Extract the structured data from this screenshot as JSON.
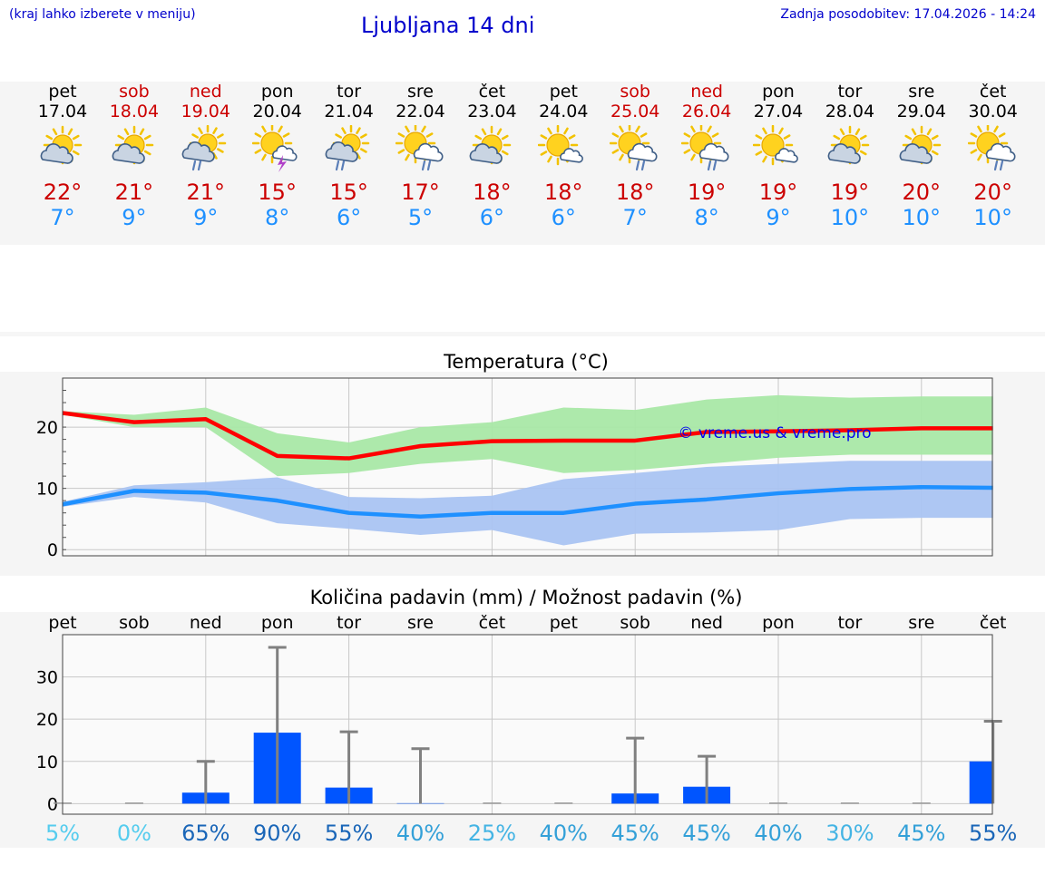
{
  "header": {
    "location_hint": "(kraj lahko izberete v meniju)",
    "title": "Ljubljana 14 dni",
    "updated": "Zadnja posodobitev: 17.04.2026 - 14:24"
  },
  "colors": {
    "link_blue": "#0000cc",
    "max_red": "#cc0000",
    "min_blue": "#1e90ff",
    "max_line": "#ff0000",
    "max_band": "#a9e8a6",
    "min_band": "#aac4f2",
    "bar": "#0055ff",
    "error_bar": "#808080"
  },
  "days": [
    {
      "name": "pet",
      "date": "17.04",
      "weekend": false,
      "icon": "partly-cloudy-icon",
      "max": "22°",
      "min": "7°"
    },
    {
      "name": "sob",
      "date": "18.04",
      "weekend": true,
      "icon": "partly-cloudy-icon",
      "max": "21°",
      "min": "9°"
    },
    {
      "name": "ned",
      "date": "19.04",
      "weekend": true,
      "icon": "cloudy-rain-icon",
      "max": "21°",
      "min": "9°"
    },
    {
      "name": "pon",
      "date": "20.04",
      "weekend": false,
      "icon": "thunderstorm-icon",
      "max": "15°",
      "min": "8°"
    },
    {
      "name": "tor",
      "date": "21.04",
      "weekend": false,
      "icon": "cloudy-rain-icon",
      "max": "15°",
      "min": "6°"
    },
    {
      "name": "sre",
      "date": "22.04",
      "weekend": false,
      "icon": "sun-cloud-rain-icon",
      "max": "17°",
      "min": "5°"
    },
    {
      "name": "čet",
      "date": "23.04",
      "weekend": false,
      "icon": "partly-cloudy-icon",
      "max": "18°",
      "min": "6°"
    },
    {
      "name": "pet",
      "date": "24.04",
      "weekend": false,
      "icon": "sun-small-cloud-icon",
      "max": "18°",
      "min": "6°"
    },
    {
      "name": "sob",
      "date": "25.04",
      "weekend": true,
      "icon": "sun-cloud-rain-icon",
      "max": "18°",
      "min": "7°"
    },
    {
      "name": "ned",
      "date": "26.04",
      "weekend": true,
      "icon": "sun-cloud-rain-icon",
      "max": "19°",
      "min": "8°"
    },
    {
      "name": "pon",
      "date": "27.04",
      "weekend": false,
      "icon": "sun-small-cloud-icon",
      "max": "19°",
      "min": "9°"
    },
    {
      "name": "tor",
      "date": "28.04",
      "weekend": false,
      "icon": "partly-cloudy-icon",
      "max": "19°",
      "min": "10°"
    },
    {
      "name": "sre",
      "date": "29.04",
      "weekend": false,
      "icon": "partly-cloudy-icon",
      "max": "20°",
      "min": "10°"
    },
    {
      "name": "čet",
      "date": "30.04",
      "weekend": false,
      "icon": "sun-cloud-rain-icon",
      "max": "20°",
      "min": "10°"
    }
  ],
  "chart_data": [
    {
      "type": "line",
      "title": "Temperatura (°C)",
      "watermark": "© vreme.us & vreme.pro",
      "x": [
        "pet",
        "sob",
        "ned",
        "pon",
        "tor",
        "sre",
        "čet",
        "pet",
        "sob",
        "ned",
        "pon",
        "tor",
        "sre",
        "čet"
      ],
      "ylim": [
        -1,
        28
      ],
      "yticks": [
        0,
        10,
        20
      ],
      "grid": true,
      "series": [
        {
          "role": "max",
          "values": [
            22.3,
            20.8,
            21.3,
            15.3,
            14.9,
            16.9,
            17.7,
            17.8,
            17.8,
            19.2,
            19.3,
            19.5,
            19.8,
            19.8
          ]
        },
        {
          "role": "max_range_top",
          "values": [
            22.6,
            22.0,
            23.2,
            19.0,
            17.5,
            20.0,
            20.8,
            23.2,
            22.8,
            24.5,
            25.2,
            24.8,
            25.0,
            25.0
          ]
        },
        {
          "role": "max_range_bottom",
          "values": [
            22.0,
            20.0,
            20.0,
            12.0,
            12.5,
            14.0,
            14.8,
            12.5,
            13.0,
            14.0,
            15.0,
            15.5,
            15.5,
            15.5
          ]
        },
        {
          "role": "min",
          "values": [
            7.4,
            9.6,
            9.3,
            8.0,
            6.0,
            5.4,
            6.0,
            6.0,
            7.5,
            8.2,
            9.2,
            9.9,
            10.2,
            10.1
          ]
        },
        {
          "role": "min_range_top",
          "values": [
            7.8,
            10.5,
            11.0,
            11.8,
            8.6,
            8.4,
            8.8,
            11.5,
            12.5,
            13.5,
            14.0,
            14.5,
            14.5,
            14.5
          ]
        },
        {
          "role": "min_range_bottom",
          "values": [
            7.0,
            8.6,
            7.7,
            4.3,
            3.4,
            2.4,
            3.2,
            0.7,
            2.6,
            2.8,
            3.2,
            5.0,
            5.2,
            5.2
          ]
        }
      ]
    },
    {
      "type": "bar",
      "title": "Količina padavin (mm) / Možnost padavin (%)",
      "categories": [
        "pet",
        "sob",
        "ned",
        "pon",
        "tor",
        "sre",
        "čet",
        "pet",
        "sob",
        "ned",
        "pon",
        "tor",
        "sre",
        "čet"
      ],
      "values": [
        0,
        0,
        2.6,
        16.8,
        3.8,
        0.1,
        0,
        0,
        2.4,
        4.0,
        0,
        0,
        0,
        10.0
      ],
      "error_top": [
        0,
        0,
        10,
        37,
        17,
        13,
        0,
        0,
        15.5,
        11.2,
        0,
        0,
        0,
        19.5
      ],
      "ylim": [
        -2.5,
        40
      ],
      "yticks": [
        0,
        10,
        20,
        30
      ],
      "grid": true,
      "chance": [
        {
          "label": "5%",
          "color": "#55ccee"
        },
        {
          "label": "0%",
          "color": "#55ccee"
        },
        {
          "label": "65%",
          "color": "#1a66b8"
        },
        {
          "label": "90%",
          "color": "#1a66b8"
        },
        {
          "label": "55%",
          "color": "#1a66b8"
        },
        {
          "label": "40%",
          "color": "#33a0d8"
        },
        {
          "label": "25%",
          "color": "#44b4e4"
        },
        {
          "label": "40%",
          "color": "#33a0d8"
        },
        {
          "label": "45%",
          "color": "#33a0d8"
        },
        {
          "label": "45%",
          "color": "#33a0d8"
        },
        {
          "label": "40%",
          "color": "#33a0d8"
        },
        {
          "label": "30%",
          "color": "#44b4e4"
        },
        {
          "label": "45%",
          "color": "#33a0d8"
        },
        {
          "label": "55%",
          "color": "#1a66b8"
        }
      ]
    }
  ]
}
